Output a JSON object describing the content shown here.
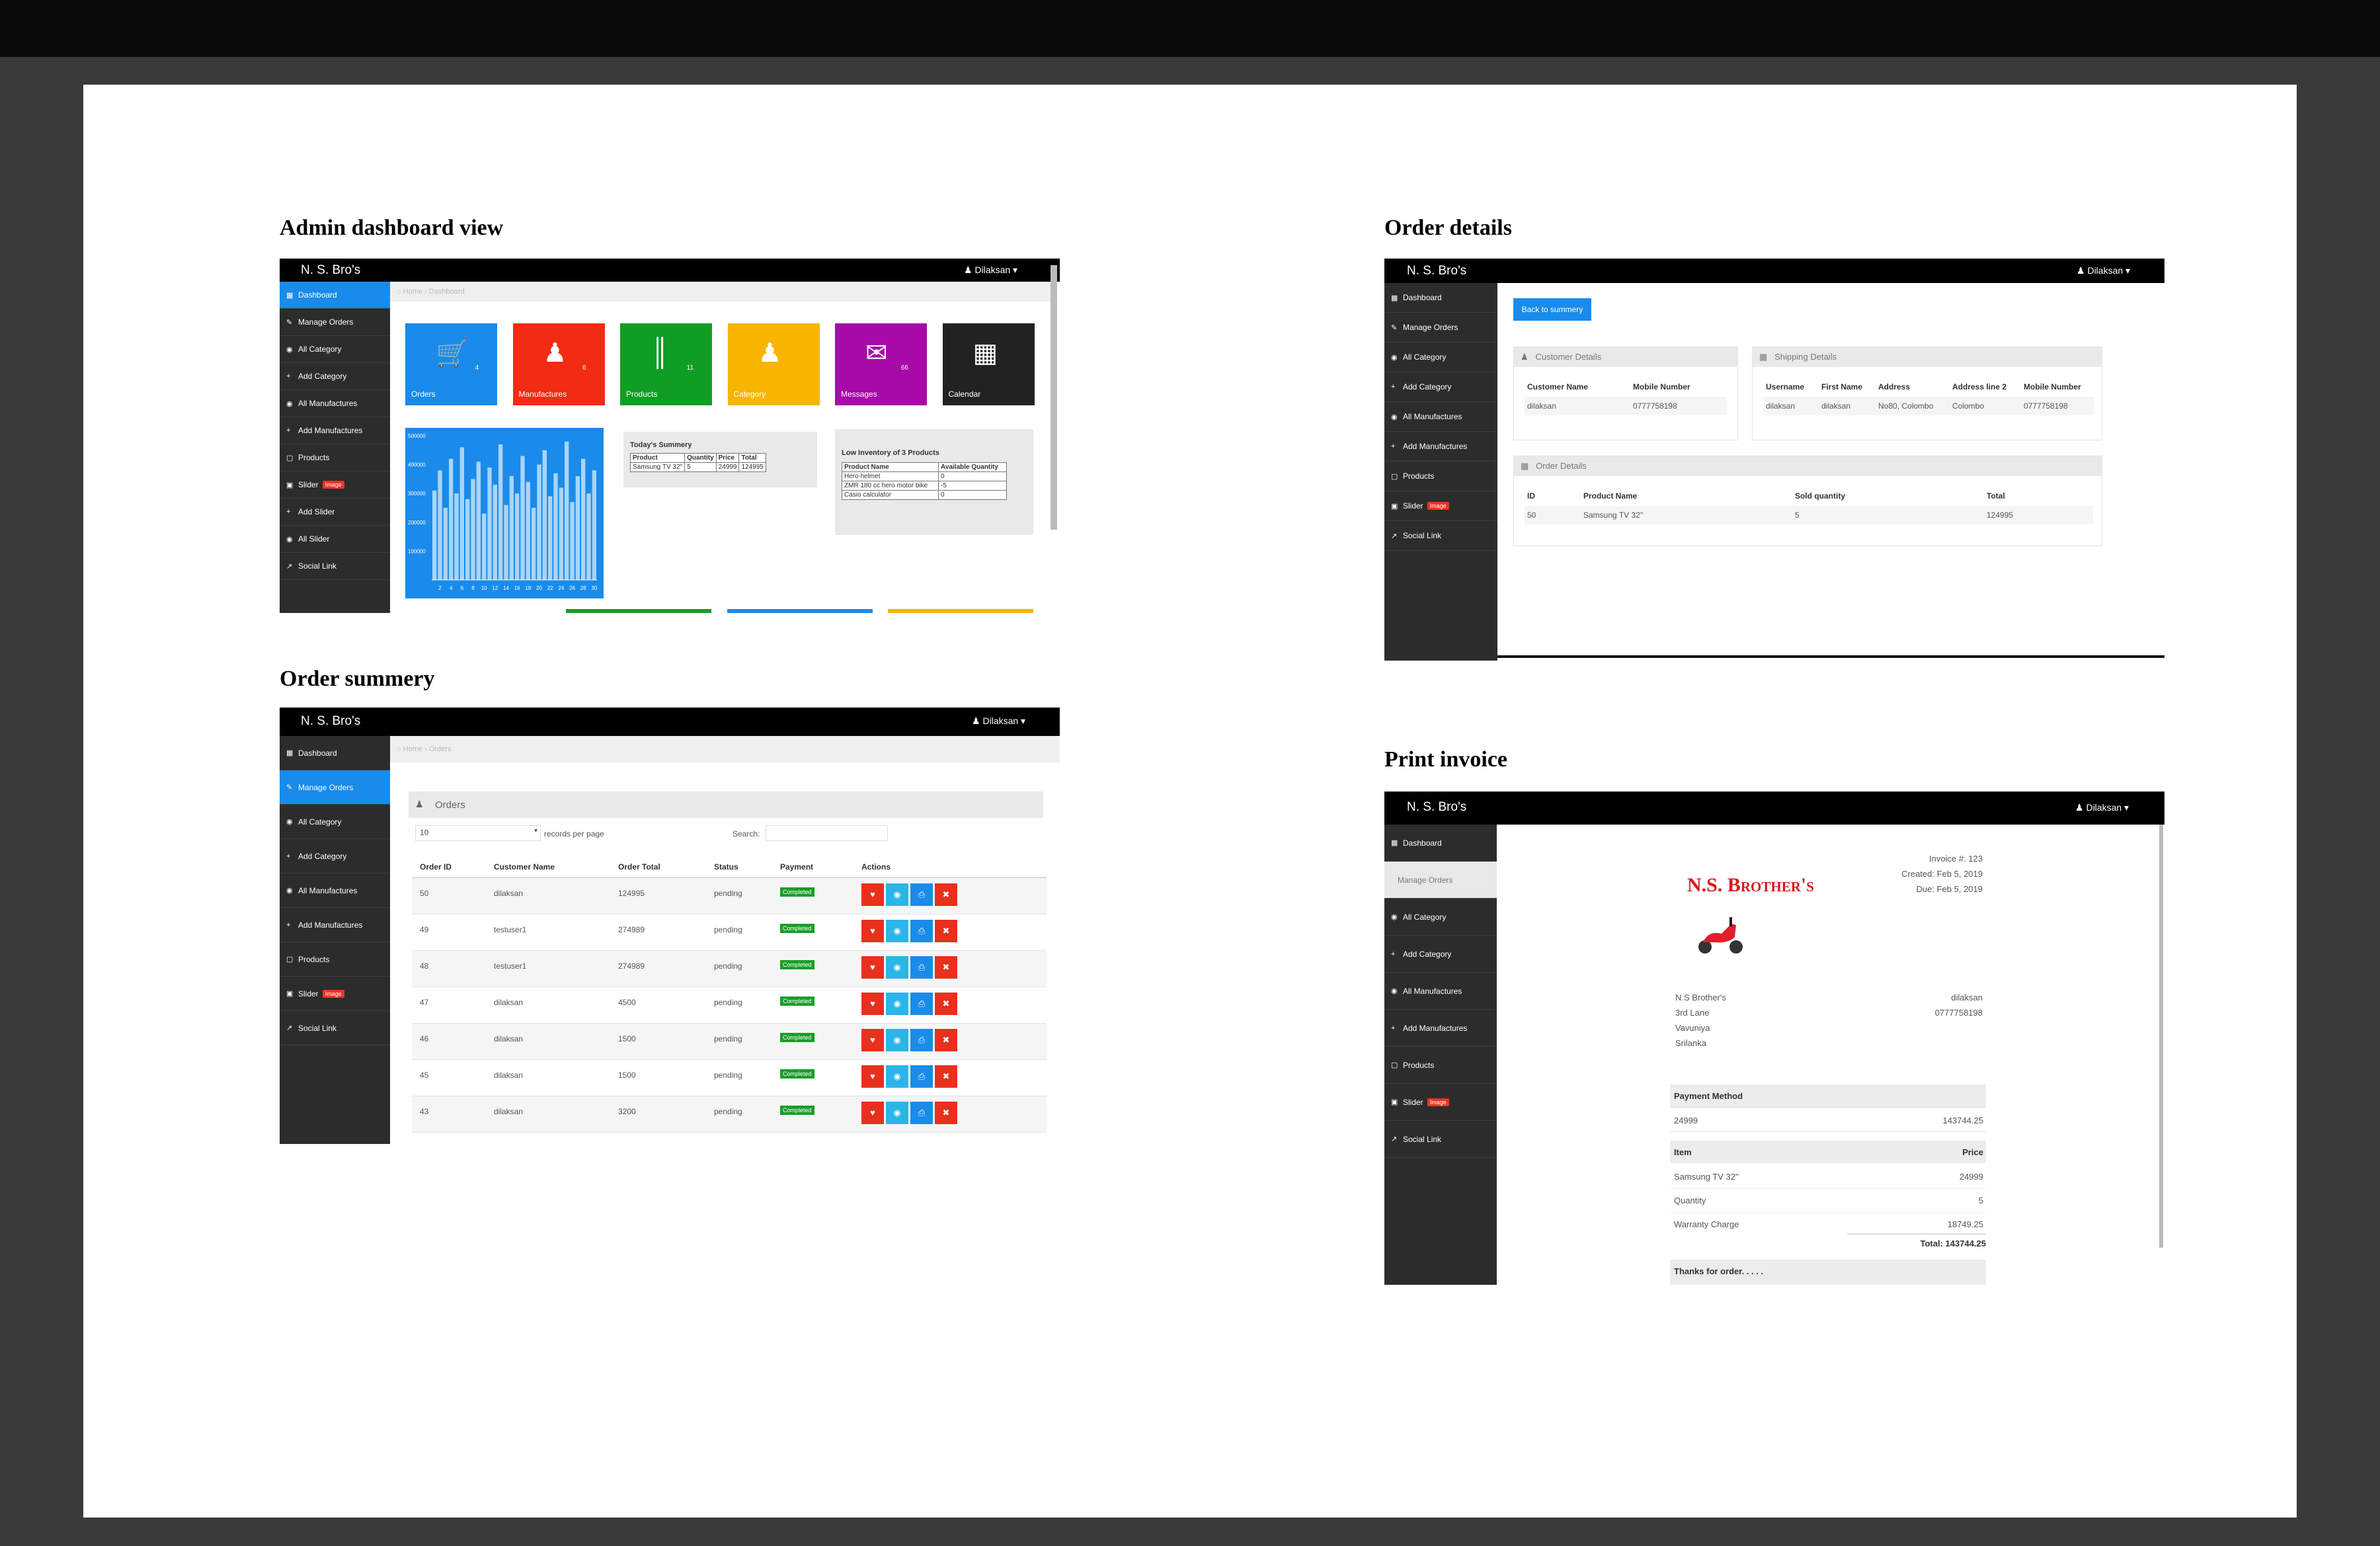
{
  "titles": {
    "dashboard": "Admin dashboard view",
    "order_summary": "Order summery",
    "order_details": "Order details",
    "print_invoice": "Print invoice"
  },
  "app": {
    "brand": "N. S. Bro's",
    "user": "Dilaksan"
  },
  "colors": {
    "accent": "#1a8bea",
    "sidebar": "#2c2c2c",
    "danger": "#e8301c",
    "success": "#1a9d2a"
  },
  "dashboard": {
    "sidebar": [
      "Dashboard",
      "Manage Orders",
      "All Category",
      "Add Category",
      "All Manufactures",
      "Add Manufactures",
      "Products",
      "Slider",
      "Add Slider",
      "All Slider",
      "Social Link"
    ],
    "slider_badge": "Image",
    "breadcrumb": {
      "home": "Home",
      "current": "Dashboard"
    },
    "tiles": [
      {
        "label": "Orders",
        "count": "4",
        "color": "#1a8bea",
        "icon": "cart-icon"
      },
      {
        "label": "Manufactures",
        "count": "6",
        "color": "#f12b14",
        "icon": "users-icon"
      },
      {
        "label": "Products",
        "count": "11",
        "color": "#0f9e24",
        "icon": "barcode-icon"
      },
      {
        "label": "Category",
        "count": "",
        "color": "#f7b500",
        "icon": "group-icon"
      },
      {
        "label": "Messages",
        "count": "66",
        "color": "#a70aa7",
        "icon": "mail-icon"
      },
      {
        "label": "Calendar",
        "count": "",
        "color": "#222222",
        "icon": "calendar-icon"
      }
    ],
    "today_summary": {
      "title": "Today's Summery",
      "headers": [
        "Product",
        "Quantity",
        "Price",
        "Total"
      ],
      "rows": [
        [
          "Samsung TV 32\"",
          "5",
          "24999",
          "124995"
        ]
      ]
    },
    "low_inventory": {
      "title": "Low Inventory of 3 Products",
      "headers": [
        "Product Name",
        "Available Quantity"
      ],
      "rows": [
        [
          "Hero helmet",
          "0"
        ],
        [
          "ZMR 180 cc hero motor bike",
          "-5"
        ],
        [
          "Casio calculator",
          "0"
        ]
      ]
    },
    "chart_data": {
      "type": "bar",
      "x_ticks": [
        "2",
        "4",
        "6",
        "8",
        "10",
        "12",
        "14",
        "16",
        "18",
        "20",
        "22",
        "24",
        "26",
        "28",
        "30"
      ],
      "y_ticks": [
        "100000",
        "200000",
        "300000",
        "400000",
        "500000"
      ],
      "ylim": [
        0,
        500000
      ],
      "values": [
        310000,
        380000,
        250000,
        420000,
        300000,
        460000,
        280000,
        350000,
        410000,
        230000,
        390000,
        330000,
        470000,
        260000,
        360000,
        300000,
        430000,
        340000,
        250000,
        400000,
        450000,
        290000,
        370000,
        320000,
        480000,
        270000,
        360000,
        420000,
        300000,
        380000
      ]
    }
  },
  "orders": {
    "sidebar": [
      "Dashboard",
      "Manage Orders",
      "All Category",
      "Add Category",
      "All Manufactures",
      "Add Manufactures",
      "Products",
      "Slider",
      "Social Link"
    ],
    "slider_badge": "Image",
    "breadcrumb": {
      "home": "Home",
      "current": "Orders"
    },
    "panel_title": "Orders",
    "per_page": "10",
    "per_page_label": "records per page",
    "search_label": "Search:",
    "headers": [
      "Order ID",
      "Customer Name",
      "Order Total",
      "Status",
      "Payment",
      "Actions"
    ],
    "rows": [
      [
        "50",
        "dilaksan",
        "124995",
        "pending",
        "Completed"
      ],
      [
        "49",
        "testuser1",
        "274989",
        "pending",
        "Completed"
      ],
      [
        "48",
        "testuser1",
        "274989",
        "pending",
        "Completed"
      ],
      [
        "47",
        "dilaksan",
        "4500",
        "pending",
        "Completed"
      ],
      [
        "46",
        "dilaksan",
        "1500",
        "pending",
        "Completed"
      ],
      [
        "45",
        "dilaksan",
        "1500",
        "pending",
        "Completed"
      ],
      [
        "43",
        "dilaksan",
        "3200",
        "pending",
        "Completed"
      ]
    ],
    "action_icons": [
      "tag-icon",
      "eye-icon",
      "print-icon",
      "trash-icon"
    ]
  },
  "details": {
    "sidebar": [
      "Dashboard",
      "Manage Orders",
      "All Category",
      "Add Category",
      "All Manufactures",
      "Add Manufactures",
      "Products",
      "Slider",
      "Social Link"
    ],
    "slider_badge": "Image",
    "back_button": "Back to summery",
    "customer": {
      "title": "Customer Details",
      "headers": [
        "Customer Name",
        "Mobile Number"
      ],
      "row": [
        "dilaksan",
        "0777758198"
      ]
    },
    "shipping": {
      "title": "Shipping Details",
      "headers": [
        "Username",
        "First Name",
        "Address",
        "Address line 2",
        "Mobile Number"
      ],
      "row": [
        "dilaksan",
        "dilaksan",
        "No80, Colombo",
        "Colombo",
        "0777758198"
      ]
    },
    "order": {
      "title": "Order Details",
      "headers": [
        "ID",
        "Product Name",
        "Sold quantity",
        "Total"
      ],
      "row": [
        "50",
        "Samsung TV 32\"",
        "5",
        "124995"
      ]
    }
  },
  "invoice": {
    "sidebar": [
      "Dashboard",
      "Manage Orders",
      "All Category",
      "Add Category",
      "All Manufactures",
      "Add Manufactures",
      "Products",
      "Slider",
      "Social Link"
    ],
    "slider_badge": "Image",
    "logo_text": "N.S. Brother's",
    "meta": [
      "Invoice #: 123",
      "Created: Feb 5, 2019",
      "Due: Feb 5, 2019"
    ],
    "from": [
      "N.S Brother's",
      "3rd Lane",
      "Vavuniya",
      "Srilanka"
    ],
    "to": [
      "dilaksan",
      "0777758198"
    ],
    "payment_method": {
      "label": "Payment Method",
      "left": "24999",
      "right": "143744.25"
    },
    "items_header": {
      "left": "Item",
      "right": "Price"
    },
    "items": [
      [
        "Samsung TV 32\"",
        "24999"
      ],
      [
        "Quantity",
        "5"
      ],
      [
        "Warranty Charge",
        "18749.25"
      ]
    ],
    "total": "Total: 143744.25",
    "thanks": "Thanks for order. . . . ."
  }
}
